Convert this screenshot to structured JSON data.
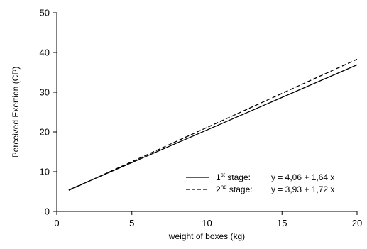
{
  "chart_data": {
    "type": "line",
    "xlabel": "weight of boxes (kg)",
    "ylabel": "Perceived Exertion (CP)",
    "xlim": [
      0,
      20
    ],
    "ylim": [
      0,
      50
    ],
    "xticks": [
      "0",
      "5",
      "10",
      "15",
      "20"
    ],
    "yticks": [
      "0",
      "10",
      "20",
      "30",
      "40",
      "50"
    ],
    "grid": false,
    "legend_position": "bottom-right",
    "series": [
      {
        "name_num": "1",
        "name_sup": "st",
        "name_rest": " stage:",
        "equation": "y = 4,06 + 1,64 x",
        "style": "solid",
        "x": [
          0.8,
          20
        ],
        "y": [
          5.4,
          36.9
        ]
      },
      {
        "name_num": "2",
        "name_sup": "nd",
        "name_rest": " stage:",
        "equation": "y = 3,93 + 1,72 x",
        "style": "dashed",
        "x": [
          0.8,
          20
        ],
        "y": [
          5.3,
          38.3
        ]
      }
    ]
  }
}
